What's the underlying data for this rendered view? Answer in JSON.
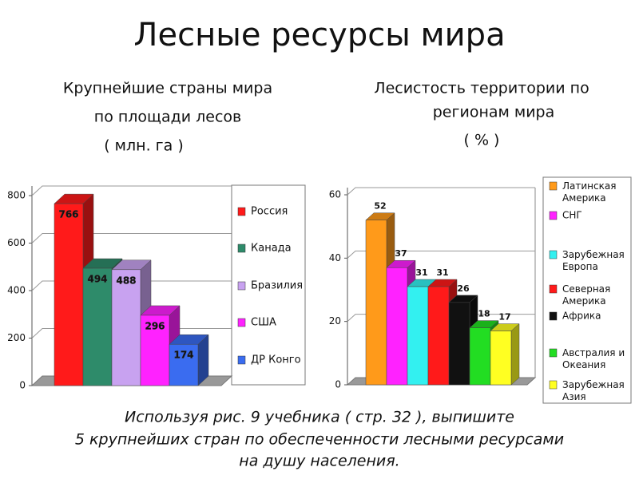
{
  "title": "Лесные ресурсы мира",
  "task": [
    "Используя рис. 9 учебника ( стр. 32 ), выпишите",
    "5 крупнейших стран по обеспеченности лесными ресурсами",
    "на душу населения."
  ],
  "chart_data": [
    {
      "type": "bar",
      "title": [
        "Крупнейшие страны мира",
        "по площади лесов",
        "( млн. га )"
      ],
      "categories": [
        "Россия",
        "Канада",
        "Бразилия",
        "США",
        "ДР Конго"
      ],
      "values": [
        766,
        494,
        488,
        296,
        174
      ],
      "colors": [
        "#ff1a1a",
        "#2e8b6a",
        "#c8a2f0",
        "#ff22ff",
        "#3a6cf0"
      ],
      "ylim": [
        0,
        800
      ],
      "yticks": [
        0,
        200,
        400,
        600,
        800
      ],
      "grid": true
    },
    {
      "type": "bar",
      "title": [
        "Лесистость территории по",
        "регионам мира",
        "( % )"
      ],
      "categories": [
        "Латинская Америка",
        "СНГ",
        "Зарубежная Европа",
        "Северная Америка",
        "Африка",
        "Австралия и Океания",
        "Зарубежная Азия"
      ],
      "values": [
        52,
        37,
        31,
        31,
        26,
        18,
        17
      ],
      "colors": [
        "#ff9a1a",
        "#ff22ff",
        "#33f0f0",
        "#ff1a1a",
        "#111111",
        "#22dd22",
        "#ffff22"
      ],
      "ylim": [
        0,
        60
      ],
      "yticks": [
        0,
        20,
        40,
        60
      ],
      "grid": true
    }
  ]
}
